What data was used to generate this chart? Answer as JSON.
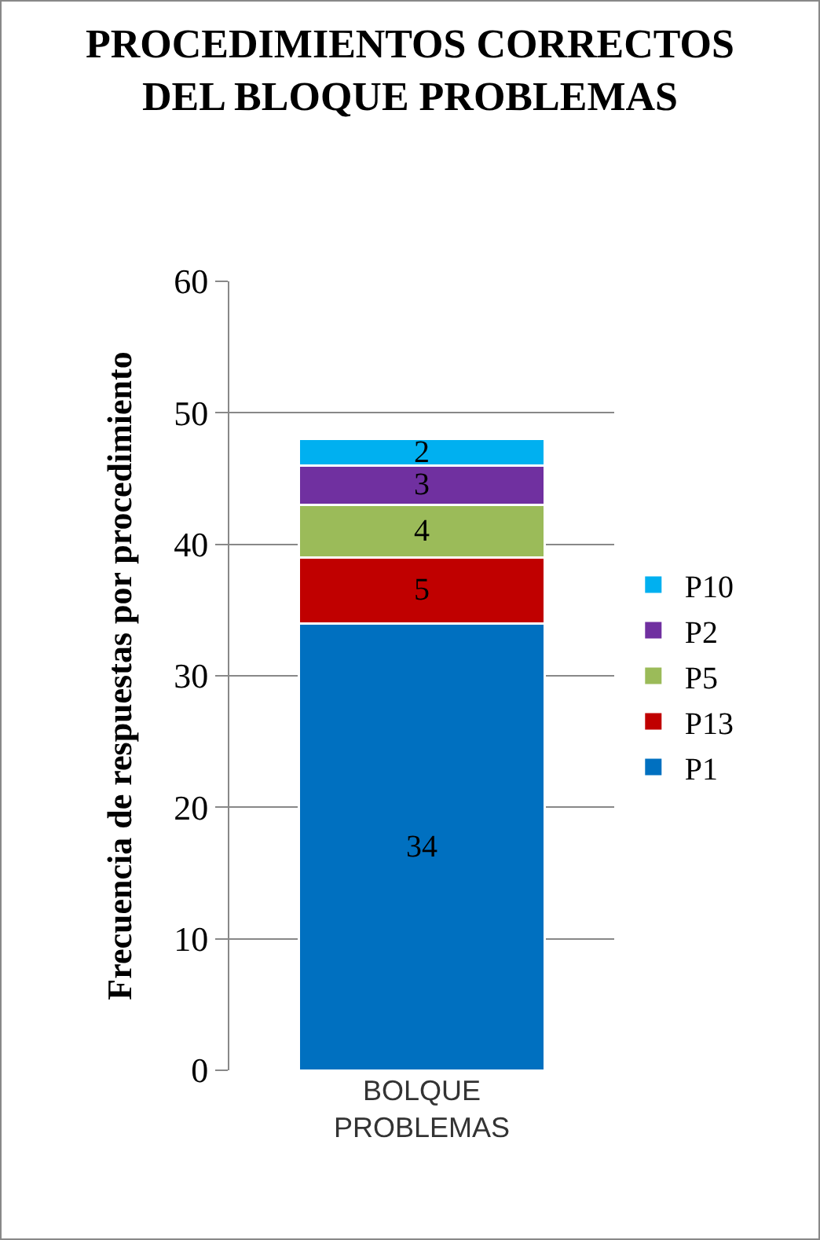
{
  "chart_data": {
    "type": "bar",
    "title": "PROCEDIMIENTOS CORRECTOS DEL BLOQUE PROBLEMAS",
    "ylabel": "Frecuencia de respuestas por procedimiento",
    "categories": [
      "BOLQUE PROBLEMAS"
    ],
    "series": [
      {
        "name": "P1",
        "color": "#0070c0",
        "values": [
          34
        ]
      },
      {
        "name": "P13",
        "color": "#c00000",
        "values": [
          5
        ]
      },
      {
        "name": "P5",
        "color": "#9bbb59",
        "values": [
          4
        ]
      },
      {
        "name": "P2",
        "color": "#7030a0",
        "values": [
          3
        ]
      },
      {
        "name": "P10",
        "color": "#00b0f0",
        "values": [
          2
        ]
      }
    ],
    "stacked": true,
    "ylim": [
      0,
      60
    ],
    "yticks": [
      0,
      10,
      20,
      30,
      40,
      50,
      60
    ],
    "grid": "y",
    "legend": "right",
    "data_labels": true
  }
}
